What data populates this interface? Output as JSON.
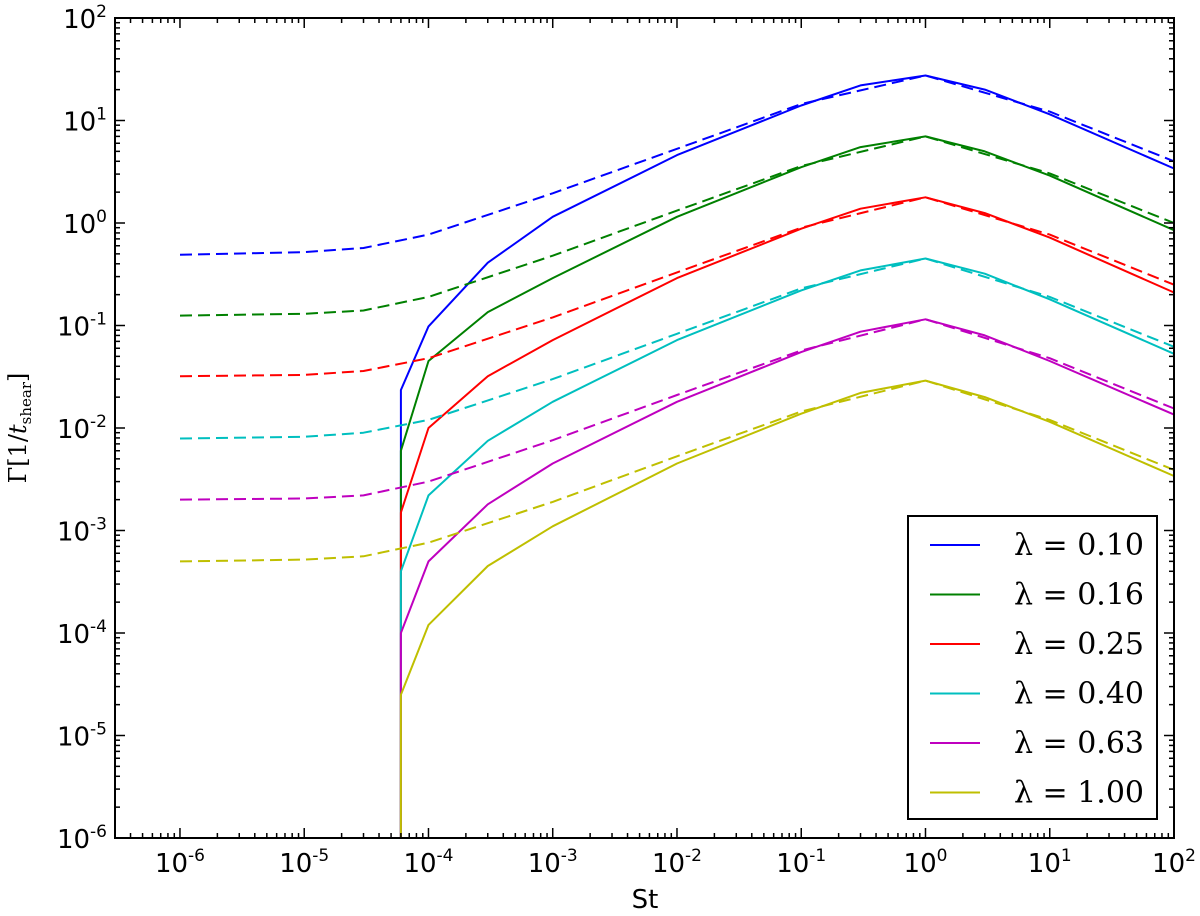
{
  "chart_data": {
    "type": "line",
    "title": "",
    "xlabel": "St",
    "ylabel_parts": {
      "symbol": "Γ",
      "open": "[1/",
      "var": "t",
      "sub": "shear",
      "close": "]"
    },
    "xscale": "log",
    "yscale": "log",
    "xlim": [
      3e-07,
      100
    ],
    "ylim": [
      1e-06,
      100
    ],
    "xticks": [
      {
        "value": 1e-06,
        "base": "10",
        "exp": "-6"
      },
      {
        "value": 1e-05,
        "base": "10",
        "exp": "-5"
      },
      {
        "value": 0.0001,
        "base": "10",
        "exp": "-4"
      },
      {
        "value": 0.001,
        "base": "10",
        "exp": "-3"
      },
      {
        "value": 0.01,
        "base": "10",
        "exp": "-2"
      },
      {
        "value": 0.1,
        "base": "10",
        "exp": "-1"
      },
      {
        "value": 1,
        "base": "10",
        "exp": "0"
      },
      {
        "value": 10,
        "base": "10",
        "exp": "1"
      },
      {
        "value": 100,
        "base": "10",
        "exp": "2"
      }
    ],
    "yticks": [
      {
        "value": 1e-06,
        "base": "10",
        "exp": "-6"
      },
      {
        "value": 1e-05,
        "base": "10",
        "exp": "-5"
      },
      {
        "value": 0.0001,
        "base": "10",
        "exp": "-4"
      },
      {
        "value": 0.001,
        "base": "10",
        "exp": "-3"
      },
      {
        "value": 0.01,
        "base": "10",
        "exp": "-2"
      },
      {
        "value": 0.1,
        "base": "10",
        "exp": "-1"
      },
      {
        "value": 1,
        "base": "10",
        "exp": "0"
      },
      {
        "value": 10,
        "base": "10",
        "exp": "1"
      },
      {
        "value": 100,
        "base": "10",
        "exp": "2"
      }
    ],
    "grid": false,
    "legend_position": "lower-right",
    "series": [
      {
        "name": "λ = 0.10",
        "color": "#0000ff",
        "solid": {
          "x": [
            6e-05,
            6e-05,
            0.0001,
            0.0003,
            0.001,
            0.01,
            0.1,
            0.3,
            1,
            3,
            10,
            100
          ],
          "y": [
            1e-06,
            0.0235,
            0.098,
            0.41,
            1.15,
            4.6,
            14.0,
            22.0,
            27.5,
            20.0,
            11.5,
            3.4
          ]
        },
        "dashed": {
          "x": [
            1e-06,
            1e-05,
            3e-05,
            0.0001,
            0.001,
            0.01,
            0.1,
            1,
            10,
            100
          ],
          "y": [
            0.49,
            0.52,
            0.57,
            0.77,
            1.95,
            5.3,
            14.5,
            27.5,
            12.2,
            4.0
          ]
        }
      },
      {
        "name": "λ = 0.16",
        "color": "#008000",
        "solid": {
          "x": [
            6e-05,
            6e-05,
            0.0001,
            0.0003,
            0.001,
            0.01,
            0.1,
            0.3,
            1,
            3,
            10,
            100
          ],
          "y": [
            1e-06,
            0.006,
            0.045,
            0.135,
            0.29,
            1.15,
            3.5,
            5.5,
            7.0,
            5.0,
            2.9,
            0.85
          ]
        },
        "dashed": {
          "x": [
            1e-06,
            1e-05,
            3e-05,
            0.0001,
            0.001,
            0.01,
            0.1,
            1,
            10,
            100
          ],
          "y": [
            0.125,
            0.13,
            0.14,
            0.19,
            0.48,
            1.32,
            3.6,
            7.0,
            3.05,
            1.0
          ]
        }
      },
      {
        "name": "λ = 0.25",
        "color": "#ff0000",
        "solid": {
          "x": [
            6e-05,
            6e-05,
            0.0001,
            0.0003,
            0.001,
            0.01,
            0.1,
            0.3,
            1,
            3,
            10,
            100
          ],
          "y": [
            1e-06,
            0.0015,
            0.01,
            0.032,
            0.072,
            0.29,
            0.88,
            1.38,
            1.78,
            1.25,
            0.72,
            0.21
          ]
        },
        "dashed": {
          "x": [
            1e-06,
            1e-05,
            3e-05,
            0.0001,
            0.001,
            0.01,
            0.1,
            1,
            10,
            100
          ],
          "y": [
            0.032,
            0.033,
            0.036,
            0.048,
            0.12,
            0.33,
            0.9,
            1.78,
            0.77,
            0.25
          ]
        }
      },
      {
        "name": "λ = 0.40",
        "color": "#00bfbf",
        "solid": {
          "x": [
            6e-05,
            6e-05,
            0.0001,
            0.0003,
            0.001,
            0.01,
            0.1,
            0.3,
            1,
            3,
            10,
            100
          ],
          "y": [
            1e-06,
            0.0004,
            0.0022,
            0.0075,
            0.018,
            0.072,
            0.22,
            0.345,
            0.45,
            0.32,
            0.18,
            0.053
          ]
        },
        "dashed": {
          "x": [
            1e-06,
            1e-05,
            3e-05,
            0.0001,
            0.001,
            0.01,
            0.1,
            1,
            10,
            100
          ],
          "y": [
            0.0079,
            0.0082,
            0.009,
            0.012,
            0.03,
            0.083,
            0.23,
            0.45,
            0.19,
            0.062
          ]
        }
      },
      {
        "name": "λ = 0.63",
        "color": "#bf00bf",
        "solid": {
          "x": [
            6e-05,
            6e-05,
            0.0001,
            0.0003,
            0.001,
            0.01,
            0.1,
            0.3,
            1,
            3,
            10,
            100
          ],
          "y": [
            1e-06,
            0.0001,
            0.0005,
            0.0018,
            0.0045,
            0.018,
            0.055,
            0.087,
            0.115,
            0.08,
            0.045,
            0.0135
          ]
        },
        "dashed": {
          "x": [
            1e-06,
            1e-05,
            3e-05,
            0.0001,
            0.001,
            0.01,
            0.1,
            1,
            10,
            100
          ],
          "y": [
            0.002,
            0.00205,
            0.0022,
            0.003,
            0.0076,
            0.021,
            0.057,
            0.115,
            0.048,
            0.0155
          ]
        }
      },
      {
        "name": "λ = 1.00",
        "color": "#bfbf00",
        "solid": {
          "x": [
            6e-05,
            6e-05,
            0.0001,
            0.0003,
            0.001,
            0.01,
            0.1,
            0.3,
            1,
            3,
            10,
            100
          ],
          "y": [
            1e-06,
            2.5e-05,
            0.00012,
            0.00045,
            0.0011,
            0.0045,
            0.0138,
            0.022,
            0.029,
            0.02,
            0.0115,
            0.0034
          ]
        },
        "dashed": {
          "x": [
            1e-06,
            1e-05,
            3e-05,
            0.0001,
            0.001,
            0.01,
            0.1,
            1,
            10,
            100
          ],
          "y": [
            0.0005,
            0.00052,
            0.00056,
            0.00076,
            0.0019,
            0.0053,
            0.0145,
            0.029,
            0.012,
            0.0039
          ]
        }
      }
    ]
  }
}
